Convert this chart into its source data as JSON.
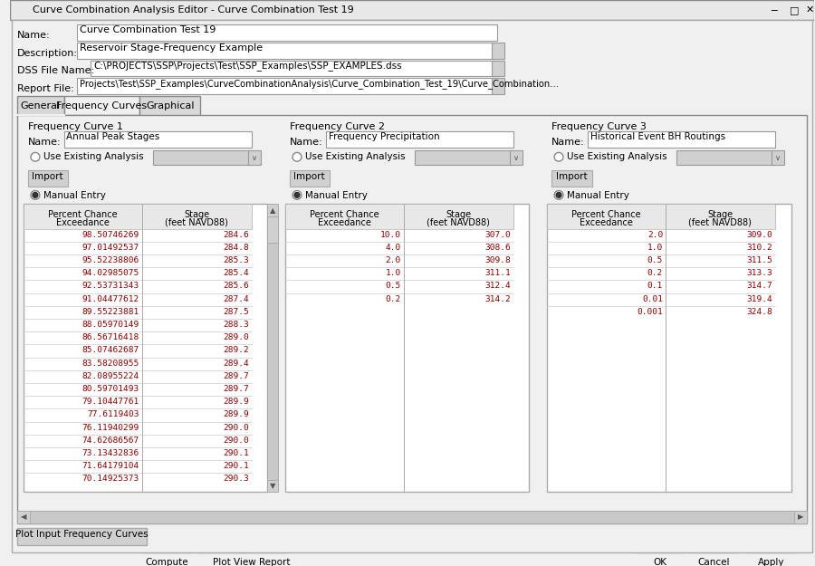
{
  "title_bar": "Curve Combination Analysis Editor - Curve Combination Test 19",
  "bg_color": "#f0f0f0",
  "window_bg": "#f0f0f0",
  "panel_bg": "#f0f0f0",
  "white": "#ffffff",
  "border_color": "#999999",
  "dark_border": "#666666",
  "tab_active_bg": "#f0f0f0",
  "tab_inactive_bg": "#d8d8d8",
  "label_color": "#000000",
  "field_bg": "#ffffff",
  "disabled_bg": "#d0d0d0",
  "header_bg": "#e8e8e8",
  "scrollbar_bg": "#c8c8c8",
  "name_value": "Curve Combination Test 19",
  "description_value": "Reservoir Stage-Frequency Example",
  "dss_value": "C:\\PROJECTS\\SSP\\Projects\\Test\\SSP_Examples\\SSP_EXAMPLES.dss",
  "report_value": "Projects\\Test\\SSP_Examples\\CurveCombinationAnalysis\\Curve_Combination_Test_19\\Curve_Combination...",
  "tabs": [
    "General",
    "Frequency Curves",
    "Graphical"
  ],
  "active_tab": 1,
  "fc1_name": "Annual Peak Stages",
  "fc2_name": "Frequency Precipitation",
  "fc3_name": "Historical Event BH Routings",
  "fc1_data": [
    [
      "98.50746269",
      "284.6"
    ],
    [
      "97.01492537",
      "284.8"
    ],
    [
      "95.52238806",
      "285.3"
    ],
    [
      "94.02985075",
      "285.4"
    ],
    [
      "92.53731343",
      "285.6"
    ],
    [
      "91.04477612",
      "287.4"
    ],
    [
      "89.55223881",
      "287.5"
    ],
    [
      "88.05970149",
      "288.3"
    ],
    [
      "86.56716418",
      "289.0"
    ],
    [
      "85.07462687",
      "289.2"
    ],
    [
      "83.58208955",
      "289.4"
    ],
    [
      "82.08955224",
      "289.7"
    ],
    [
      "80.59701493",
      "289.7"
    ],
    [
      "79.10447761",
      "289.9"
    ],
    [
      "77.6119403",
      "289.9"
    ],
    [
      "76.11940299",
      "290.0"
    ],
    [
      "74.62686567",
      "290.0"
    ],
    [
      "73.13432836",
      "290.1"
    ],
    [
      "71.64179104",
      "290.1"
    ],
    [
      "70.14925373",
      "290.3"
    ]
  ],
  "fc2_data": [
    [
      "10.0",
      "307.0"
    ],
    [
      "4.0",
      "308.6"
    ],
    [
      "2.0",
      "309.8"
    ],
    [
      "1.0",
      "311.1"
    ],
    [
      "0.5",
      "312.4"
    ],
    [
      "0.2",
      "314.2"
    ]
  ],
  "fc3_data": [
    [
      "2.0",
      "309.0"
    ],
    [
      "1.0",
      "310.2"
    ],
    [
      "0.5",
      "311.5"
    ],
    [
      "0.2",
      "313.3"
    ],
    [
      "0.1",
      "314.7"
    ],
    [
      "0.01",
      "319.4"
    ],
    [
      "0.001",
      "324.8"
    ]
  ],
  "col_header1": "Percent Chance\nExceedance",
  "col_header2": "Stage\n(feet NAVD88)"
}
